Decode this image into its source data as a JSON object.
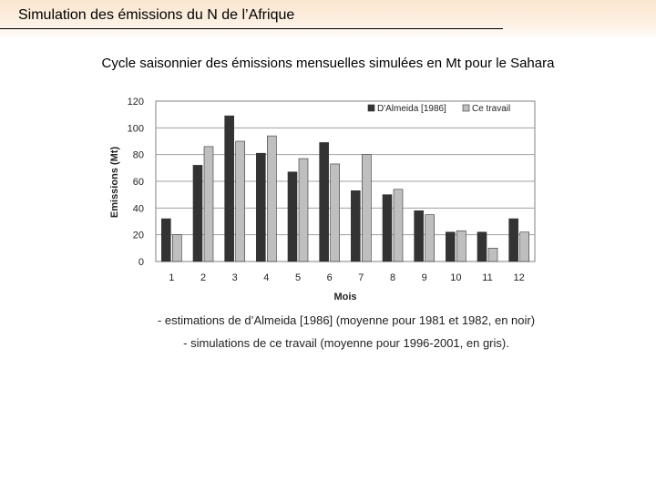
{
  "slide": {
    "title": "Simulation des émissions du N de l’Afrique",
    "caption": "Cycle saisonnier des émissions mensuelles simulées en Mt pour le Sahara",
    "notes": [
      "- estimations de d’Almeida [1986] (moyenne pour 1981 et 1982, en noir)",
      "- simulations de ce travail (moyenne pour 1996-2001, en gris)."
    ]
  },
  "colors": {
    "header_band": "#fbe6cf",
    "series_dark": "#333333",
    "series_light": "#bfbfbf",
    "plot_background": "#ffffff"
  },
  "chart_data": {
    "type": "bar",
    "title": "",
    "xlabel": "Mois",
    "ylabel": "Emissions (Mt)",
    "ylim": [
      0,
      120
    ],
    "yticks": [
      0,
      20,
      40,
      60,
      80,
      100,
      120
    ],
    "categories": [
      "1",
      "2",
      "3",
      "4",
      "5",
      "6",
      "7",
      "8",
      "9",
      "10",
      "11",
      "12"
    ],
    "series": [
      {
        "name": "D'Almeida [1986]",
        "values": [
          32,
          72,
          109,
          81,
          67,
          89,
          53,
          50,
          38,
          22,
          22,
          32
        ]
      },
      {
        "name": "Ce travail",
        "values": [
          20,
          86,
          90,
          94,
          77,
          73,
          80,
          54,
          35,
          23,
          10,
          22
        ]
      }
    ],
    "grid": true,
    "legend_position": "top-right"
  }
}
